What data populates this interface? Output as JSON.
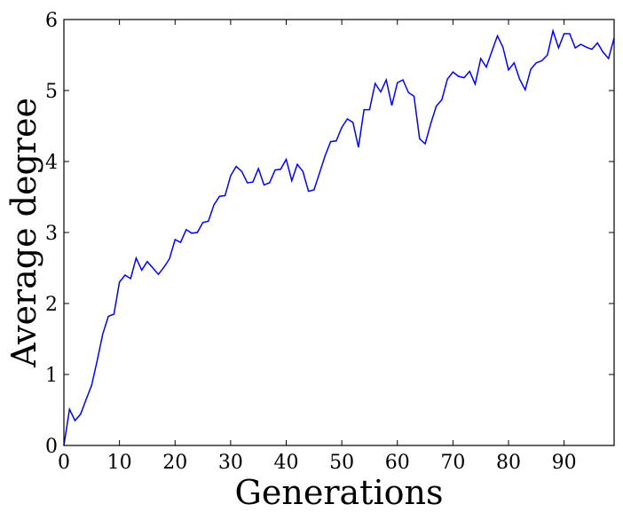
{
  "chart_data": {
    "type": "line",
    "title": "",
    "xlabel": "Generations",
    "ylabel": "Average degree",
    "xlim": [
      0,
      99
    ],
    "ylim": [
      0,
      6
    ],
    "xticks": [
      0,
      10,
      20,
      30,
      40,
      50,
      60,
      70,
      80,
      90
    ],
    "yticks": [
      0,
      1,
      2,
      3,
      4,
      5,
      6
    ],
    "grid": false,
    "line_color": "#0000ff",
    "series": [
      {
        "x": [
          0,
          1,
          2,
          3,
          4,
          5,
          6,
          7,
          8,
          9,
          10,
          11,
          12,
          13,
          14,
          15,
          16,
          17,
          18,
          19,
          20,
          21,
          22,
          23,
          24,
          25,
          26,
          27,
          28,
          29,
          30,
          31,
          32,
          33,
          34,
          35,
          36,
          37,
          38,
          39,
          40,
          41,
          42,
          43,
          44,
          45,
          46,
          47,
          48,
          49,
          50,
          51,
          52,
          53,
          54,
          55,
          56,
          57,
          58,
          59,
          60,
          61,
          62,
          63,
          64,
          65,
          66,
          67,
          68,
          69,
          70,
          71,
          72,
          73,
          74,
          75,
          76,
          77,
          78,
          79,
          80,
          81,
          82,
          83,
          84,
          85,
          86,
          87,
          88,
          89,
          90,
          91,
          92,
          93,
          94,
          95,
          96,
          97,
          98,
          99
        ],
        "values": [
          0.0,
          0.51,
          0.35,
          0.44,
          0.65,
          0.85,
          1.2,
          1.57,
          1.82,
          1.85,
          2.3,
          2.4,
          2.35,
          2.64,
          2.47,
          2.59,
          2.5,
          2.41,
          2.51,
          2.63,
          2.9,
          2.86,
          3.04,
          2.99,
          3.0,
          3.14,
          3.16,
          3.39,
          3.51,
          3.52,
          3.8,
          3.93,
          3.86,
          3.7,
          3.71,
          3.9,
          3.67,
          3.7,
          3.88,
          3.89,
          4.03,
          3.73,
          3.96,
          3.86,
          3.58,
          3.6,
          3.84,
          4.08,
          4.28,
          4.29,
          4.48,
          4.6,
          4.55,
          4.2,
          4.73,
          4.73,
          5.1,
          4.98,
          5.15,
          4.79,
          5.11,
          5.15,
          4.97,
          4.92,
          4.32,
          4.25,
          4.53,
          4.78,
          4.87,
          5.16,
          5.26,
          5.2,
          5.18,
          5.27,
          5.09,
          5.45,
          5.33,
          5.55,
          5.77,
          5.61,
          5.29,
          5.39,
          5.16,
          5.01,
          5.3,
          5.39,
          5.42,
          5.5,
          5.84,
          5.6,
          5.8,
          5.8,
          5.6,
          5.65,
          5.61,
          5.58,
          5.67,
          5.54,
          5.45,
          5.74
        ]
      }
    ]
  }
}
